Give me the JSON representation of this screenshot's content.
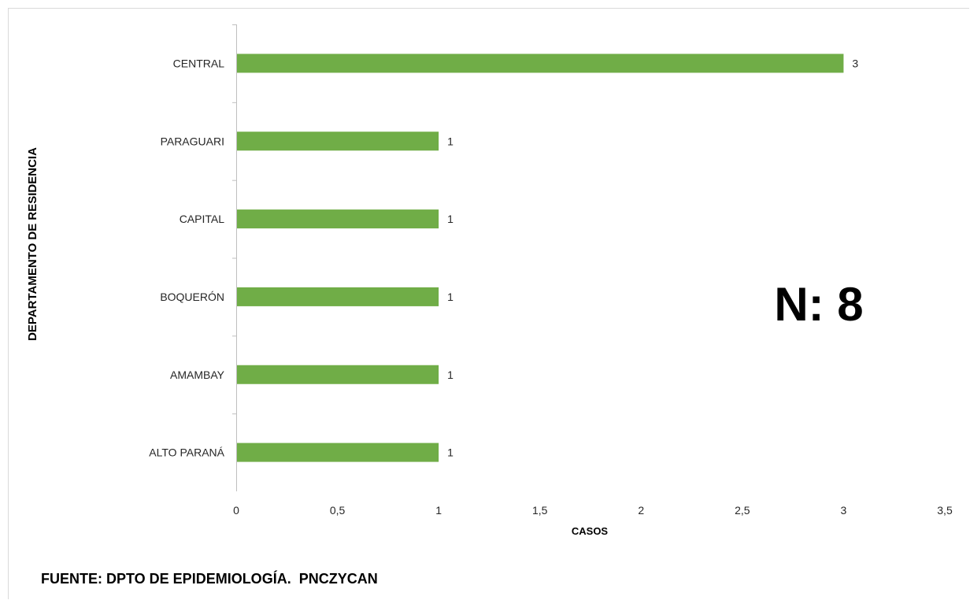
{
  "chart_data": {
    "type": "bar",
    "orientation": "horizontal",
    "categories": [
      "CENTRAL",
      "PARAGUARI",
      "CAPITAL",
      "BOQUERÓN",
      "AMAMBAY",
      "ALTO PARANÁ"
    ],
    "values": [
      3,
      1,
      1,
      1,
      1,
      1
    ],
    "data_labels": [
      "3",
      "1",
      "1",
      "1",
      "1",
      "1"
    ],
    "xlabel": "CASOS",
    "ylabel": "DEPARTAMENTO DE RESIDENCIA",
    "xlim": [
      0,
      3.5
    ],
    "x_ticks": [
      0,
      0.5,
      1,
      1.5,
      2,
      2.5,
      3,
      3.5
    ],
    "x_tick_labels": [
      "0",
      "0,5",
      "1",
      "1,5",
      "2",
      "2,5",
      "3",
      "3,5"
    ],
    "grid": false,
    "legend": "none",
    "bar_color": "#70ad47",
    "annotation": "N: 8",
    "source_note": "FUENTE: DPTO DE EPIDEMIOLOGÍA.  PNCZYCAN"
  }
}
